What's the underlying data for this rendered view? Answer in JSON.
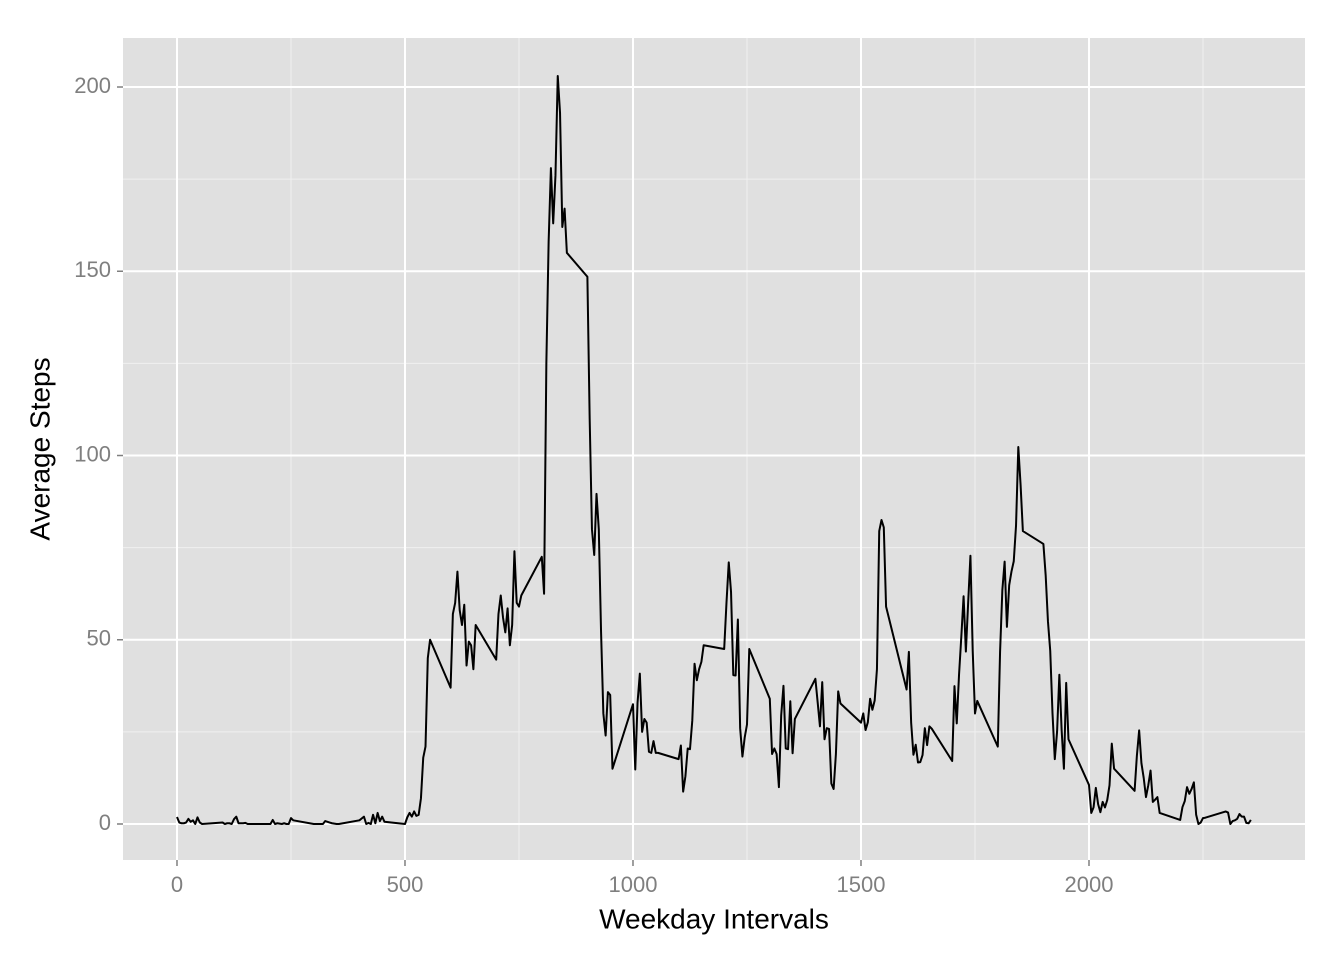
{
  "chart_data": {
    "type": "line",
    "x_label": "Weekday Intervals",
    "y_label": "Average Steps",
    "color": "#000000",
    "grid": true,
    "xlim": [
      -118.4,
      2473.7
    ],
    "ylim": [
      -9.77,
      213.3
    ],
    "xticks": [
      0,
      500,
      1000,
      1500,
      2000
    ],
    "yticks": [
      0,
      50,
      100,
      150,
      200
    ],
    "xminorticks": [
      250,
      750,
      1250,
      1750,
      2250
    ],
    "yminorticks": [
      25,
      75,
      125,
      175
    ],
    "x": [
      0,
      5,
      10,
      15,
      20,
      25,
      30,
      35,
      40,
      45,
      50,
      55,
      100,
      105,
      110,
      115,
      120,
      125,
      130,
      135,
      140,
      145,
      150,
      155,
      200,
      205,
      210,
      215,
      220,
      225,
      230,
      235,
      240,
      245,
      250,
      255,
      300,
      305,
      310,
      315,
      320,
      325,
      330,
      335,
      340,
      345,
      350,
      355,
      400,
      405,
      410,
      415,
      420,
      425,
      430,
      435,
      440,
      445,
      450,
      455,
      500,
      505,
      510,
      515,
      520,
      525,
      530,
      535,
      540,
      545,
      550,
      555,
      600,
      605,
      610,
      615,
      620,
      625,
      630,
      635,
      640,
      645,
      650,
      655,
      700,
      705,
      710,
      715,
      720,
      725,
      730,
      735,
      740,
      745,
      750,
      755,
      800,
      805,
      810,
      815,
      820,
      825,
      830,
      835,
      840,
      845,
      850,
      855,
      900,
      905,
      910,
      915,
      920,
      925,
      930,
      935,
      940,
      945,
      950,
      955,
      1000,
      1005,
      1010,
      1015,
      1020,
      1025,
      1030,
      1035,
      1040,
      1045,
      1050,
      1055,
      1100,
      1105,
      1110,
      1115,
      1120,
      1125,
      1130,
      1135,
      1140,
      1145,
      1150,
      1155,
      1200,
      1205,
      1210,
      1215,
      1220,
      1225,
      1230,
      1235,
      1240,
      1245,
      1250,
      1255,
      1300,
      1305,
      1310,
      1315,
      1320,
      1325,
      1330,
      1335,
      1340,
      1345,
      1350,
      1355,
      1400,
      1405,
      1410,
      1415,
      1420,
      1425,
      1430,
      1435,
      1440,
      1445,
      1450,
      1455,
      1500,
      1505,
      1510,
      1515,
      1520,
      1525,
      1530,
      1535,
      1540,
      1545,
      1550,
      1555,
      1600,
      1605,
      1610,
      1615,
      1620,
      1625,
      1630,
      1635,
      1640,
      1645,
      1650,
      1655,
      1700,
      1705,
      1710,
      1715,
      1720,
      1725,
      1730,
      1735,
      1740,
      1745,
      1750,
      1755,
      1800,
      1805,
      1810,
      1815,
      1820,
      1825,
      1830,
      1835,
      1840,
      1845,
      1850,
      1855,
      1900,
      1905,
      1910,
      1915,
      1920,
      1925,
      1930,
      1935,
      1940,
      1945,
      1950,
      1955,
      2000,
      2005,
      2010,
      2015,
      2020,
      2025,
      2030,
      2035,
      2040,
      2045,
      2050,
      2055,
      2100,
      2105,
      2110,
      2115,
      2120,
      2125,
      2130,
      2135,
      2140,
      2145,
      2150,
      2155,
      2200,
      2205,
      2210,
      2215,
      2220,
      2225,
      2230,
      2235,
      2240,
      2245,
      2250,
      2255,
      2300,
      2305,
      2310,
      2315,
      2320,
      2325,
      2330,
      2335,
      2340,
      2345,
      2350,
      2355
    ],
    "values": [
      1.9,
      0.4,
      0.2,
      0.2,
      0.4,
      1.4,
      0.6,
      1.0,
      0,
      1.8,
      0.4,
      0,
      0.4,
      0,
      0.2,
      0.2,
      0,
      1.3,
      2.0,
      0.2,
      0.2,
      0.2,
      0.3,
      0,
      0,
      0,
      1.1,
      0,
      0.2,
      0.1,
      0,
      0.2,
      0,
      0,
      1.6,
      1.0,
      0,
      0,
      0,
      0,
      0,
      0.8,
      0.6,
      0.4,
      0.2,
      0.1,
      0,
      0,
      1.0,
      1.5,
      2.0,
      0,
      0.3,
      0,
      2.5,
      0.2,
      3.0,
      0.8,
      2.0,
      0.6,
      0,
      1.8,
      3.0,
      2.0,
      3.4,
      2.2,
      2.5,
      7.0,
      18.0,
      21.0,
      45,
      50,
      37,
      57,
      60,
      68.5,
      58,
      54,
      59.5,
      43,
      49.5,
      48.5,
      42,
      54,
      44.6,
      57,
      62,
      56,
      52,
      58.5,
      48.5,
      54,
      74,
      60,
      59,
      62,
      72.5,
      62.5,
      125,
      158,
      178,
      163,
      176,
      203,
      193,
      162,
      167,
      155,
      148.5,
      110,
      80,
      73,
      89.6,
      80,
      52,
      30,
      24,
      35.8,
      35,
      15,
      32.5,
      14.8,
      33,
      40.8,
      25,
      28.5,
      27.5,
      19.6,
      19.3,
      22.5,
      19.3,
      19.3,
      17.6,
      21.3,
      8.8,
      13,
      20.5,
      20.3,
      28,
      43.5,
      39,
      42,
      44,
      48.5,
      47.5,
      60,
      71,
      63,
      40.4,
      40.3,
      55.5,
      26,
      18.3,
      23.5,
      27,
      47.5,
      34,
      19,
      20.5,
      19,
      10,
      29.5,
      37.5,
      20.5,
      20.3,
      33.3,
      19.2,
      28.5,
      39.4,
      33,
      26.5,
      38.5,
      23,
      26,
      25.8,
      11,
      9.5,
      19,
      36,
      32.7,
      27.5,
      30,
      25.5,
      27.6,
      34,
      31,
      33.5,
      42,
      79.5,
      82.5,
      80.5,
      59,
      36.5,
      46.7,
      27.5,
      18.8,
      21.5,
      16.7,
      16.8,
      18.7,
      26,
      21.4,
      26.5,
      25.9,
      17.1,
      37.4,
      27.3,
      40.5,
      50.8,
      61.8,
      46.8,
      60,
      72.8,
      47,
      30,
      33.4,
      21,
      46.7,
      63.5,
      71.2,
      53.5,
      64.8,
      68.5,
      71.3,
      81,
      102.3,
      92,
      79.5,
      76,
      67.5,
      55,
      47,
      30,
      17.6,
      25,
      40.5,
      25.5,
      15,
      38.3,
      23,
      10.6,
      3,
      4.5,
      9.8,
      5.4,
      3.2,
      6,
      4.5,
      6.5,
      10.5,
      21.8,
      15,
      9,
      18.5,
      25.4,
      16.5,
      12.5,
      7.3,
      10.5,
      14.5,
      6,
      6.6,
      7.3,
      3,
      1.1,
      4.6,
      6.2,
      10,
      8.2,
      9.5,
      11.3,
      2.5,
      0,
      0.4,
      1.6,
      1.7,
      3.4,
      3.1,
      0,
      0.8,
      1,
      1.4,
      2.7,
      2,
      2,
      0.3,
      0.2,
      1.1
    ]
  }
}
